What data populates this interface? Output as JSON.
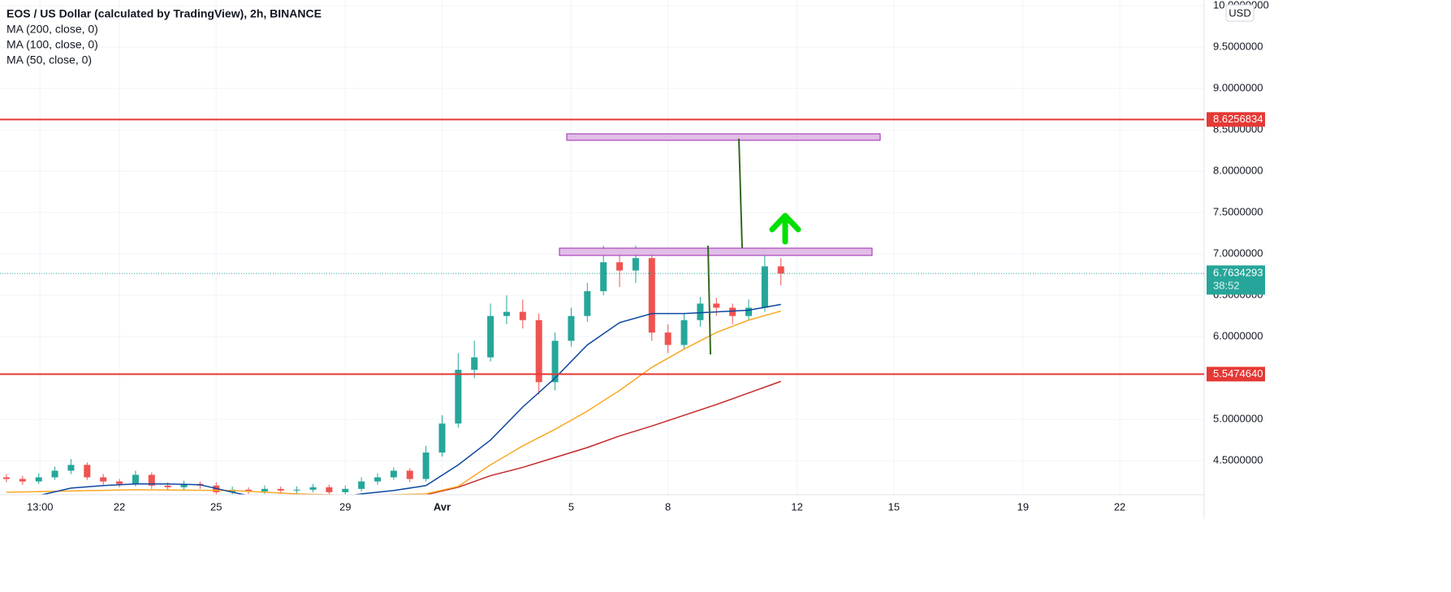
{
  "chart_data": {
    "type": "candlestick",
    "title": "EOS / US Dollar (calculated by TradingView), 2h, BINANCE",
    "currency": "USD",
    "xlim": [
      18.3,
      55.54
    ],
    "ylim": [
      4.09,
      10.07
    ],
    "xticks": [
      {
        "value": 19.54,
        "label": "13:00"
      },
      22,
      25,
      29,
      {
        "value": 32,
        "label": "Avr"
      },
      {
        "value": 36,
        "label": "5"
      },
      {
        "value": 39,
        "label": "8"
      },
      {
        "value": 43,
        "label": "12"
      },
      {
        "value": 46,
        "label": "15"
      },
      {
        "value": 50,
        "label": "19"
      },
      {
        "value": 53,
        "label": "22"
      }
    ],
    "yticks": [
      {
        "value": 10,
        "label": "10.0000000"
      },
      {
        "value": 9.5,
        "label": "9.5000000"
      },
      {
        "value": 9,
        "label": "9.0000000"
      },
      {
        "value": 8.5,
        "label": "8.5000000"
      },
      {
        "value": 8,
        "label": "8.0000000"
      },
      {
        "value": 7.5,
        "label": "7.5000000"
      },
      {
        "value": 7,
        "label": "7.0000000"
      },
      {
        "value": 6.5,
        "label": "6.5000000"
      },
      {
        "value": 6,
        "label": "6.0000000"
      },
      {
        "value": 5,
        "label": "5.0000000"
      },
      {
        "value": 4.5,
        "label": "4.5000000"
      }
    ],
    "grid": true,
    "up_color": "#26a69a",
    "down_color": "#ef5350",
    "candles": {
      "x": [
        18.5,
        19,
        19.5,
        20,
        20.5,
        21,
        21.5,
        22,
        22.5,
        23,
        23.5,
        24,
        24.5,
        25,
        25.5,
        26,
        26.5,
        27,
        27.5,
        28,
        28.5,
        29,
        29.5,
        30,
        30.5,
        31,
        31.5,
        32,
        32.5,
        33,
        33.5,
        34,
        34.5,
        35,
        35.5,
        36,
        36.5,
        37,
        37.5,
        38,
        38.5,
        39,
        39.5,
        40,
        40.5,
        41,
        41.5,
        42,
        42.5
      ],
      "open": [
        4.3,
        4.28,
        4.25,
        4.3,
        4.38,
        4.45,
        4.3,
        4.25,
        4.22,
        4.33,
        4.2,
        4.18,
        4.22,
        4.2,
        4.12,
        4.15,
        4.13,
        4.16,
        4.14,
        4.15,
        4.18,
        4.12,
        4.16,
        4.25,
        4.3,
        4.38,
        4.28,
        4.6,
        4.95,
        5.6,
        5.75,
        6.25,
        6.3,
        6.2,
        5.45,
        5.95,
        6.25,
        6.55,
        6.9,
        6.8,
        6.95,
        6.05,
        5.9,
        6.2,
        6.4,
        6.35,
        6.25,
        6.35,
        6.85
      ],
      "high": [
        4.34,
        4.32,
        4.35,
        4.43,
        4.52,
        4.48,
        4.34,
        4.28,
        4.38,
        4.36,
        4.24,
        4.26,
        4.25,
        4.24,
        4.19,
        4.18,
        4.2,
        4.19,
        4.19,
        4.22,
        4.21,
        4.2,
        4.3,
        4.35,
        4.42,
        4.41,
        4.68,
        5.05,
        5.8,
        5.95,
        6.4,
        6.5,
        6.45,
        6.28,
        6.05,
        6.35,
        6.65,
        7.1,
        7.05,
        7.1,
        7.0,
        6.15,
        6.28,
        6.48,
        6.47,
        6.4,
        6.45,
        7.05,
        6.95
      ],
      "low": [
        4.24,
        4.21,
        4.22,
        4.27,
        4.34,
        4.27,
        4.21,
        4.18,
        4.19,
        4.16,
        4.14,
        4.15,
        4.16,
        4.09,
        4.09,
        4.1,
        4.1,
        4.1,
        4.1,
        4.12,
        4.09,
        4.09,
        4.13,
        4.21,
        4.27,
        4.24,
        4.25,
        4.55,
        4.9,
        5.5,
        5.7,
        6.15,
        6.1,
        5.3,
        5.35,
        5.88,
        6.18,
        6.5,
        6.6,
        6.65,
        5.95,
        5.8,
        5.85,
        6.12,
        6.25,
        6.15,
        6.2,
        6.3,
        6.62
      ],
      "close": [
        4.28,
        4.25,
        4.3,
        4.38,
        4.45,
        4.3,
        4.25,
        4.22,
        4.33,
        4.2,
        4.18,
        4.22,
        4.2,
        4.12,
        4.15,
        4.13,
        4.16,
        4.14,
        4.15,
        4.18,
        4.12,
        4.16,
        4.25,
        4.3,
        4.38,
        4.28,
        4.6,
        4.95,
        5.6,
        5.75,
        6.25,
        6.3,
        6.2,
        5.45,
        5.95,
        6.25,
        6.55,
        6.9,
        6.8,
        6.95,
        6.05,
        5.9,
        6.2,
        6.4,
        6.35,
        6.25,
        6.35,
        6.85,
        6.7634293
      ]
    },
    "series": [
      {
        "name": "MA (200, close, 0)",
        "color": "#c62828",
        "x": [
          29.5,
          31.5,
          32.5,
          33.5,
          34.5,
          35.5,
          36.5,
          37.5,
          38.5,
          39.5,
          40.5,
          41.5,
          42.5
        ],
        "values": [
          4.05,
          4.09,
          4.18,
          4.32,
          4.42,
          4.54,
          4.66,
          4.8,
          4.92,
          5.05,
          5.18,
          5.32,
          5.46
        ]
      },
      {
        "name": "MA (100, close, 0)",
        "color": "#f9a825",
        "x": [
          18.5,
          22.5,
          25.5,
          27.5,
          29.5,
          31.5,
          32.5,
          33.5,
          34.5,
          35.5,
          36.5,
          37.5,
          38.5,
          39.5,
          40.5,
          41.5,
          42.5
        ],
        "values": [
          4.12,
          4.15,
          4.14,
          4.1,
          4.08,
          4.1,
          4.19,
          4.45,
          4.68,
          4.88,
          5.1,
          5.35,
          5.63,
          5.85,
          6.05,
          6.2,
          6.31
        ]
      },
      {
        "name": "MA (50, close, 0)",
        "color": "#0d47a1",
        "x": [
          19.5,
          20.5,
          21.5,
          22.5,
          23.5,
          24.5,
          25.5,
          26.5,
          27.5,
          28.5,
          29.5,
          30.5,
          31.5,
          32.5,
          33.5,
          34.5,
          35.5,
          36.5,
          37.5,
          38.5,
          39.5,
          40.5,
          41.5,
          42.5
        ],
        "values": [
          4.08,
          4.17,
          4.2,
          4.22,
          4.22,
          4.21,
          4.12,
          4.04,
          4.02,
          4.04,
          4.1,
          4.14,
          4.2,
          4.45,
          4.75,
          5.15,
          5.5,
          5.9,
          6.17,
          6.28,
          6.28,
          6.3,
          6.32,
          6.39
        ]
      }
    ],
    "levels": [
      {
        "value": 8.6256834,
        "label": "8.6256834",
        "color": "#e53935"
      },
      {
        "value": 5.547464,
        "label": "5.5474640",
        "color": "#e53935"
      }
    ],
    "last_price": {
      "value": 6.7634293,
      "label": "6.7634293",
      "countdown": "38:52",
      "color": "#26a69a"
    }
  }
}
